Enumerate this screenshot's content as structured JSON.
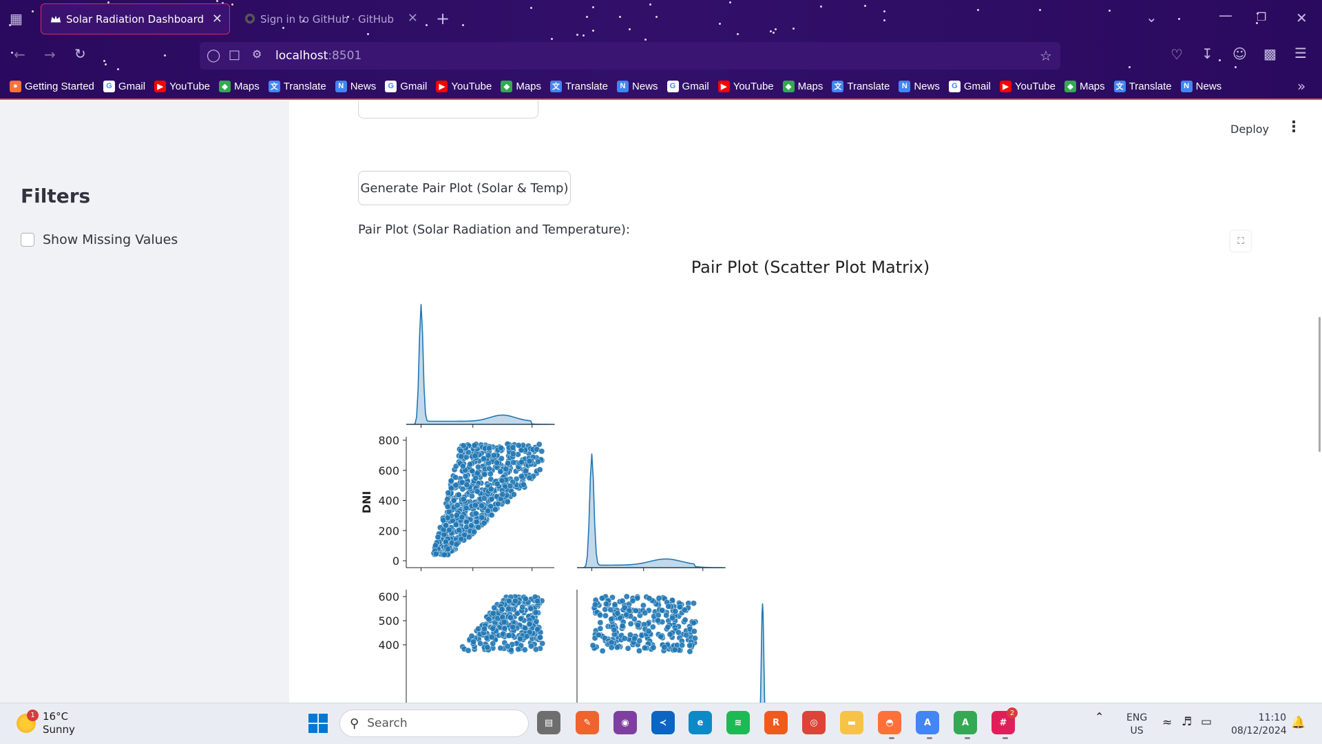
{
  "browser": {
    "tabs": [
      {
        "title": "Solar Radiation Dashboard",
        "active": true
      },
      {
        "title": "Sign in to GitHub · GitHub",
        "active": false
      }
    ],
    "url_host": "localhost",
    "url_port": ":8501",
    "bookmarks": [
      "Getting Started",
      "Gmail",
      "YouTube",
      "Maps",
      "Translate",
      "News",
      "Gmail",
      "YouTube",
      "Maps",
      "Translate",
      "News",
      "Gmail",
      "YouTube",
      "Maps",
      "Translate",
      "News",
      "Gmail",
      "YouTube",
      "Maps",
      "Translate",
      "News"
    ],
    "accent": "#e24b5a"
  },
  "sidebar": {
    "title": "Filters",
    "checkbox_label": "Show Missing Values",
    "checkbox_checked": false
  },
  "header": {
    "deploy_label": "Deploy"
  },
  "main": {
    "button_label": "Generate Pair Plot (Solar & Temp)",
    "caption": "Pair Plot (Solar Radiation and Temperature):"
  },
  "chart_data": {
    "type": "scatter",
    "title": "Pair Plot (Scatter Plot Matrix)",
    "ylabel_row2": "DNI",
    "row2_yticks": [
      "800",
      "600",
      "400",
      "200",
      "0"
    ],
    "row3_yticks": [
      "600",
      "500",
      "400"
    ],
    "row2_ylim": [
      0,
      800
    ],
    "row3_ylim_visible": [
      400,
      600
    ],
    "series_color": "#1f77b4",
    "panels": [
      {
        "row": 1,
        "col": 1,
        "kind": "kde",
        "description_values": {
          "peak_x_fraction": 0.1,
          "secondary_bump": 0.65
        }
      },
      {
        "row": 2,
        "col": 1,
        "kind": "scatter",
        "y_range": [
          0,
          800
        ]
      },
      {
        "row": 2,
        "col": 2,
        "kind": "kde"
      },
      {
        "row": 3,
        "col": 1,
        "kind": "scatter",
        "y_range_visible": [
          400,
          600
        ]
      },
      {
        "row": 3,
        "col": 2,
        "kind": "scatter",
        "y_range_visible": [
          400,
          600
        ]
      },
      {
        "row": 3,
        "col": 3,
        "kind": "kde"
      }
    ]
  },
  "taskbar": {
    "temperature": "16°C",
    "condition": "Sunny",
    "weather_badge": "1",
    "search_placeholder": "Search",
    "lang_line1": "ENG",
    "lang_line2": "US",
    "time": "11:10",
    "date": "08/12/2024",
    "slack_badge": "2"
  }
}
